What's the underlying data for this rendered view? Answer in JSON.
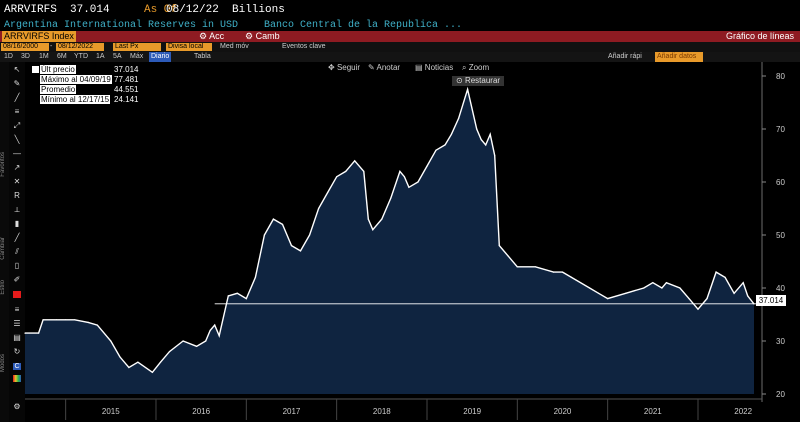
{
  "header": {
    "ticker": "ARRVIRFS",
    "value": "37.014",
    "asof_label": "As Of",
    "asof_date": "08/12/22",
    "units": "Billions",
    "description": "Argentina International Reserves in USD",
    "source": "Banco Central de la Republica ..."
  },
  "toolbar": {
    "index_label": "ARRVIRFS Index",
    "acc_label": "Acc",
    "camb_label": "Camb",
    "chart_type": "Gráfico de líneas",
    "date_from": "08/16/2000",
    "date_to": "08/12/2022",
    "last_px": "Last Px",
    "currency": "Divisa local",
    "moving_avg": "Med móv",
    "key_events": "Eventos clave",
    "periods": [
      "1D",
      "3D",
      "1M",
      "6M",
      "YTD",
      "1A",
      "5A",
      "Máx"
    ],
    "frequency": "Diario",
    "table_label": "Tabla",
    "add_quick": "Añadir rápi",
    "quick_box": "Añadir datos"
  },
  "chart_controls": {
    "follow": "Seguir",
    "annotate": "Anotar",
    "news": "Noticias",
    "zoom": "Zoom",
    "restore": "Restaurar"
  },
  "side_labels": [
    "Favoritos",
    "Cambiar",
    "Estilo",
    "Modos"
  ],
  "legend": {
    "rows": [
      {
        "label": "Últ precio",
        "value": "37.014"
      },
      {
        "label": "Máximo al 04/09/19",
        "value": "77.481"
      },
      {
        "label": "Promedio",
        "value": "44.551"
      },
      {
        "label": "Mínimo al 12/17/15",
        "value": "24.141"
      }
    ]
  },
  "last_value_label": "37.014",
  "colors": {
    "line": "#ffffff",
    "fill": "#0f2440",
    "accent": "#e89a2a",
    "redbar": "#8e1b22"
  },
  "chart_data": {
    "type": "area",
    "title": "",
    "xlabel": "",
    "ylabel": "",
    "ylim": [
      20,
      82
    ],
    "yticks": [
      20,
      30,
      40,
      50,
      60,
      70,
      80
    ],
    "xticks": [
      "2015",
      "2016",
      "2017",
      "2018",
      "2019",
      "2020",
      "2021",
      "2022"
    ],
    "xlim": [
      2014.55,
      2022.62
    ],
    "grid": false,
    "last_value": 37.014,
    "x": [
      2014.55,
      2014.7,
      2014.75,
      2014.9,
      2015.0,
      2015.1,
      2015.25,
      2015.35,
      2015.5,
      2015.6,
      2015.7,
      2015.8,
      2015.96,
      2016.05,
      2016.15,
      2016.3,
      2016.45,
      2016.55,
      2016.6,
      2016.65,
      2016.7,
      2016.8,
      2016.9,
      2017.0,
      2017.1,
      2017.2,
      2017.3,
      2017.4,
      2017.5,
      2017.6,
      2017.7,
      2017.8,
      2017.9,
      2018.0,
      2018.1,
      2018.2,
      2018.3,
      2018.35,
      2018.4,
      2018.5,
      2018.6,
      2018.7,
      2018.75,
      2018.8,
      2018.9,
      2019.0,
      2019.1,
      2019.2,
      2019.27,
      2019.35,
      2019.45,
      2019.55,
      2019.6,
      2019.65,
      2019.7,
      2019.75,
      2019.8,
      2019.9,
      2020.0,
      2020.2,
      2020.4,
      2020.5,
      2020.6,
      2020.8,
      2020.9,
      2021.0,
      2021.2,
      2021.4,
      2021.5,
      2021.6,
      2021.65,
      2021.8,
      2021.9,
      2022.0,
      2022.1,
      2022.2,
      2022.3,
      2022.4,
      2022.5,
      2022.55,
      2022.62
    ],
    "series": [
      {
        "values": [
          31.5,
          31.5,
          34,
          34,
          34,
          34,
          33.5,
          33,
          30,
          27,
          25,
          26,
          24.1,
          26,
          28,
          30,
          29,
          30,
          32,
          33,
          31,
          38.5,
          39,
          38,
          42,
          50,
          53,
          52,
          48,
          47,
          50,
          55,
          58,
          61,
          62,
          64,
          62,
          53,
          51,
          53,
          57,
          62,
          61,
          59,
          60,
          63,
          66,
          67,
          69,
          72,
          77.5,
          70,
          68,
          67,
          69,
          65,
          48,
          46,
          44,
          44,
          43,
          43,
          42,
          40,
          39,
          38,
          39,
          40,
          41,
          40,
          41,
          40,
          38,
          36,
          38,
          43,
          42,
          39,
          41,
          38.5,
          37
        ]
      }
    ]
  }
}
